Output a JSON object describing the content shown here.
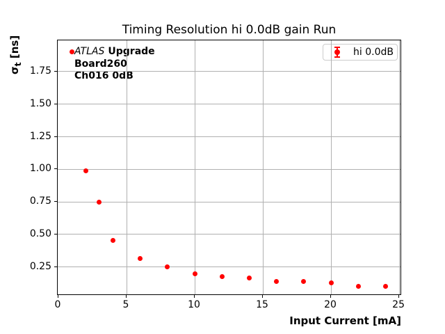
{
  "chart_data": {
    "type": "scatter",
    "title": "Timing Resolution hi 0.0dB gain Run",
    "xlabel": "Input Current [mA]",
    "ylabel": "σₜ [ns]",
    "ylabel_parts": {
      "sigma": "σ",
      "sub": "t",
      "units": " [ns]"
    },
    "series": [
      {
        "name": "hi 0.0dB",
        "color": "#ff0000",
        "marker": "circle-errorbar",
        "x": [
          1,
          2,
          3,
          4,
          6,
          8,
          10,
          12,
          14,
          16,
          18,
          20,
          22,
          24
        ],
        "y": [
          1.9,
          0.99,
          0.75,
          0.455,
          0.315,
          0.25,
          0.197,
          0.177,
          0.165,
          0.141,
          0.141,
          0.129,
          0.104,
          0.102
        ]
      }
    ],
    "xlim": [
      -0.05,
      25.2
    ],
    "ylim": [
      0.03,
      1.99
    ],
    "xticks": [
      0,
      5,
      10,
      15,
      20,
      25
    ],
    "xtick_labels": [
      "0",
      "5",
      "10",
      "15",
      "20",
      "25"
    ],
    "yticks": [
      0.25,
      0.5,
      0.75,
      1.0,
      1.25,
      1.5,
      1.75
    ],
    "ytick_labels": [
      "0.25",
      "0.50",
      "0.75",
      "1.00",
      "1.25",
      "1.50",
      "1.75"
    ],
    "grid": true,
    "grid_color": "#b0b0b0",
    "legend": {
      "position": "top-right",
      "entries": [
        {
          "label": "hi 0.0dB",
          "color": "#ff0000"
        }
      ]
    },
    "annotation": {
      "experiment": "ATLAS",
      "program": "Upgrade",
      "board": "Board260",
      "channel": "Ch016 0dB"
    }
  }
}
